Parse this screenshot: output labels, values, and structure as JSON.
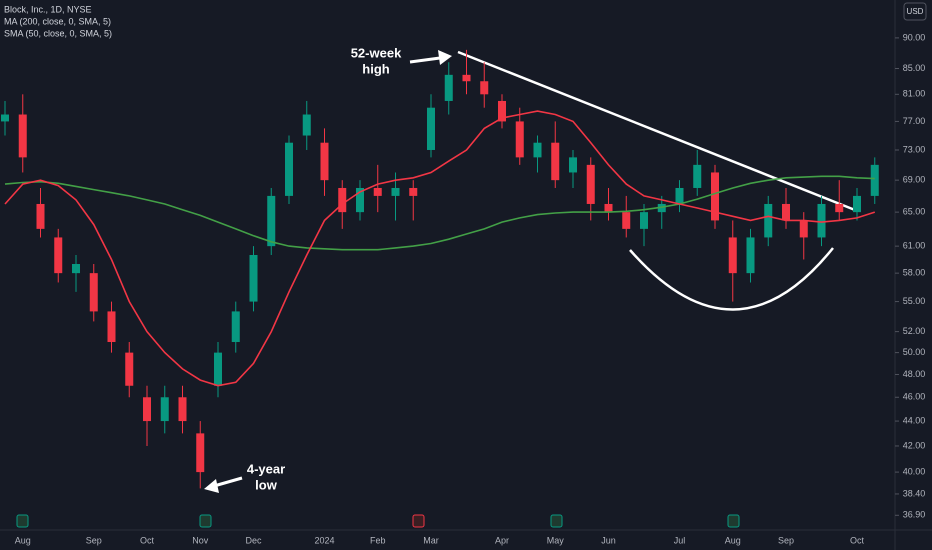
{
  "chart_data": {
    "type": "candlestick",
    "title": "Block, Inc., 1D, NYSE",
    "currency": "USD",
    "log_scale": true,
    "grid": false,
    "up_color": "#089981",
    "down_color": "#f23645",
    "categories": [
      null,
      "Aug",
      null,
      null,
      null,
      "Sep",
      null,
      null,
      "Oct",
      null,
      null,
      "Nov",
      null,
      null,
      "Dec",
      null,
      null,
      null,
      "2024",
      null,
      null,
      "Feb",
      null,
      null,
      "Mar",
      null,
      null,
      null,
      "Apr",
      null,
      null,
      "May",
      null,
      null,
      "Jun",
      null,
      null,
      null,
      "Jul",
      null,
      null,
      "Aug",
      null,
      null,
      "Sep",
      null,
      null,
      null,
      "Oct",
      null
    ],
    "open": [
      77,
      78,
      66,
      62,
      58,
      58,
      54,
      50,
      46,
      44,
      46,
      43,
      47,
      51,
      55,
      61,
      67,
      75,
      74,
      68,
      65,
      68,
      67,
      68,
      73,
      80,
      84,
      83,
      80,
      77,
      72,
      74,
      70,
      71,
      66,
      65,
      63,
      65,
      66,
      68,
      70,
      62,
      58,
      62,
      66,
      64,
      62,
      66,
      65,
      67
    ],
    "high": [
      80,
      81,
      68,
      63,
      60,
      59,
      55,
      51,
      47,
      47,
      47,
      44,
      51,
      55,
      61,
      68,
      75,
      80,
      76,
      69,
      69,
      71,
      70,
      69,
      81,
      86,
      88,
      86,
      81,
      79,
      75,
      77,
      73,
      72,
      68,
      67,
      66,
      67,
      69,
      73,
      71,
      64,
      63,
      67,
      68,
      65,
      67,
      69,
      68,
      72
    ],
    "low": [
      75,
      70,
      62,
      57,
      56,
      53,
      50,
      46,
      42,
      43,
      43,
      38.8,
      46,
      50,
      54,
      60,
      66,
      73,
      67,
      63,
      64,
      65,
      64,
      64,
      72,
      78,
      81,
      79,
      76,
      71,
      70,
      68,
      68,
      64,
      64,
      62,
      61,
      63,
      65,
      67,
      63,
      55,
      57,
      61,
      63,
      59.5,
      61,
      64,
      64,
      66
    ],
    "close": [
      78,
      72,
      63,
      58,
      59,
      54,
      51,
      47,
      44,
      46,
      44,
      40,
      50,
      54,
      60,
      67,
      74,
      78,
      69,
      65,
      68,
      67,
      68,
      67,
      79,
      84,
      83,
      81,
      77,
      72,
      74,
      69,
      72,
      66,
      65,
      63,
      65,
      66,
      68,
      71,
      64,
      58,
      62,
      66,
      64,
      62,
      66,
      65,
      67,
      71
    ],
    "series": [
      {
        "name": "MA (200, close, 0, SMA, 5)",
        "color": "#43a047",
        "values": [
          68.5,
          68.7,
          68.8,
          68.6,
          68.2,
          67.8,
          67.4,
          67,
          66.5,
          66,
          65.3,
          64.6,
          63.8,
          63,
          62.2,
          61.5,
          61,
          60.8,
          60.7,
          60.6,
          60.6,
          60.6,
          60.8,
          61,
          61.3,
          61.8,
          62.4,
          63,
          63.8,
          64.3,
          64.7,
          64.9,
          65,
          65,
          65,
          65.1,
          65.3,
          65.6,
          66,
          66.6,
          67.3,
          68,
          68.6,
          69,
          69.3,
          69.4,
          69.5,
          69.5,
          69.3,
          69.2
        ]
      },
      {
        "name": "SMA (50, close, 0, SMA, 5)",
        "color": "#f23645",
        "values": [
          66,
          68.5,
          69,
          68.3,
          66.5,
          63.5,
          59.5,
          55,
          52,
          50,
          48.5,
          47.5,
          47,
          47.3,
          49,
          52,
          56,
          60,
          64,
          66,
          67.5,
          68.5,
          69,
          69.3,
          70,
          71.5,
          73,
          76,
          77.5,
          78,
          78.5,
          78,
          77,
          74,
          71,
          68.5,
          67,
          66.5,
          66,
          65.5,
          65,
          64.5,
          64,
          64.5,
          64,
          64,
          63.8,
          64,
          64.3,
          65
        ]
      }
    ],
    "ylim": [
      35.9,
      96.6
    ],
    "yticks": [
      {
        "value": 90,
        "label": "90.00"
      },
      {
        "value": 85,
        "label": "85.00"
      },
      {
        "value": 81,
        "label": "81.00"
      },
      {
        "value": 77,
        "label": "77.00"
      },
      {
        "value": 73,
        "label": "73.00"
      },
      {
        "value": 69,
        "label": "69.00"
      },
      {
        "value": 65,
        "label": "65.00"
      },
      {
        "value": 61,
        "label": "61.00"
      },
      {
        "value": 58,
        "label": "58.00"
      },
      {
        "value": 55,
        "label": "55.00"
      },
      {
        "value": 52,
        "label": "52.00"
      },
      {
        "value": 50,
        "label": "50.00"
      },
      {
        "value": 48,
        "label": "48.00"
      },
      {
        "value": 46,
        "label": "46.00"
      },
      {
        "value": 44,
        "label": "44.00"
      },
      {
        "value": 42,
        "label": "42.00"
      },
      {
        "value": 40,
        "label": "40.00"
      },
      {
        "value": 38.4,
        "label": "38.40"
      },
      {
        "value": 36.9,
        "label": "36.90"
      }
    ],
    "annotations": [
      [
        "52-week",
        "high"
      ],
      [
        "4-year",
        "low"
      ]
    ]
  }
}
